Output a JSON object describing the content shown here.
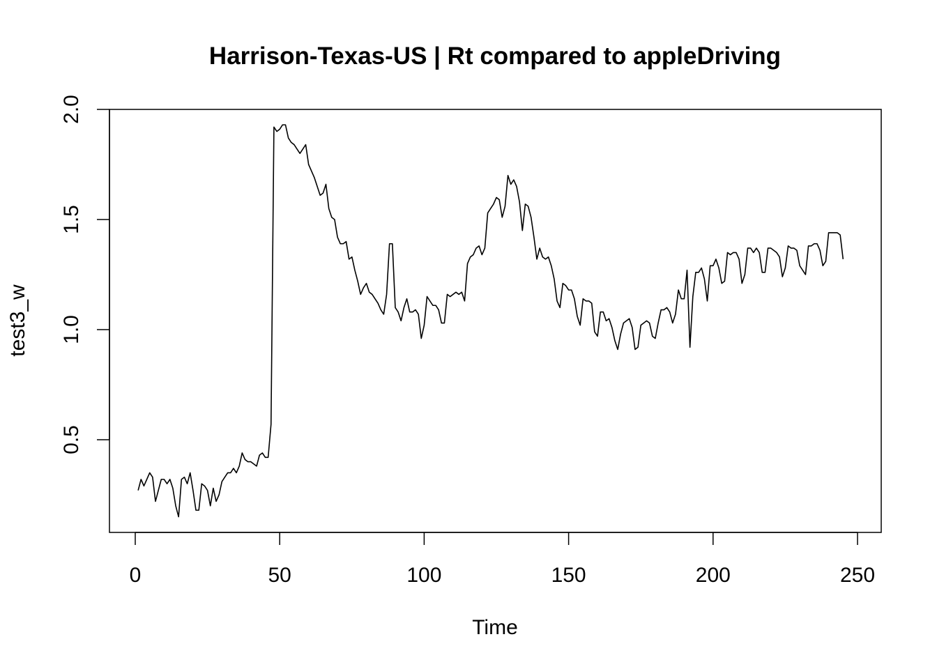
{
  "chart_data": {
    "type": "line",
    "title": "Harrison-Texas-US | Rt compared to appleDriving",
    "xlabel": "Time",
    "ylabel": "test3_w",
    "xlim": [
      0,
      250
    ],
    "ylim": [
      0.15,
      2.0
    ],
    "x_ticks": [
      0,
      50,
      100,
      150,
      200,
      250
    ],
    "y_ticks": [
      0.5,
      1.0,
      1.5,
      2.0
    ],
    "x_tick_labels": [
      "0",
      "50",
      "100",
      "150",
      "200",
      "250"
    ],
    "y_tick_labels": [
      "0.5",
      "1.0",
      "1.5",
      "2.0"
    ],
    "grid": false,
    "legend": "none",
    "line_color": "#000000",
    "series": [
      {
        "values": [
          0.27,
          0.32,
          0.29,
          0.32,
          0.35,
          0.33,
          0.22,
          0.27,
          0.32,
          0.32,
          0.3,
          0.32,
          0.28,
          0.2,
          0.15,
          0.32,
          0.33,
          0.3,
          0.35,
          0.27,
          0.18,
          0.18,
          0.3,
          0.29,
          0.27,
          0.2,
          0.28,
          0.22,
          0.25,
          0.31,
          0.33,
          0.35,
          0.35,
          0.37,
          0.35,
          0.38,
          0.44,
          0.41,
          0.4,
          0.4,
          0.39,
          0.38,
          0.43,
          0.44,
          0.42,
          0.42,
          0.57,
          1.92,
          1.9,
          1.91,
          1.93,
          1.93,
          1.87,
          1.85,
          1.84,
          1.82,
          1.8,
          1.82,
          1.84,
          1.75,
          1.72,
          1.69,
          1.65,
          1.61,
          1.62,
          1.66,
          1.55,
          1.51,
          1.5,
          1.42,
          1.39,
          1.39,
          1.4,
          1.32,
          1.33,
          1.27,
          1.22,
          1.16,
          1.19,
          1.21,
          1.17,
          1.16,
          1.14,
          1.12,
          1.09,
          1.07,
          1.16,
          1.39,
          1.39,
          1.1,
          1.08,
          1.04,
          1.1,
          1.14,
          1.08,
          1.08,
          1.09,
          1.07,
          0.96,
          1.02,
          1.15,
          1.13,
          1.11,
          1.11,
          1.09,
          1.03,
          1.03,
          1.16,
          1.15,
          1.16,
          1.17,
          1.16,
          1.17,
          1.13,
          1.3,
          1.33,
          1.34,
          1.37,
          1.38,
          1.34,
          1.37,
          1.53,
          1.55,
          1.57,
          1.6,
          1.59,
          1.51,
          1.56,
          1.7,
          1.66,
          1.68,
          1.65,
          1.58,
          1.45,
          1.57,
          1.56,
          1.51,
          1.42,
          1.32,
          1.37,
          1.33,
          1.32,
          1.33,
          1.29,
          1.23,
          1.13,
          1.1,
          1.21,
          1.2,
          1.18,
          1.18,
          1.14,
          1.06,
          1.02,
          1.14,
          1.13,
          1.13,
          1.12,
          0.99,
          0.97,
          1.08,
          1.08,
          1.04,
          1.05,
          1.01,
          0.95,
          0.91,
          0.98,
          1.03,
          1.04,
          1.05,
          1.01,
          0.91,
          0.92,
          1.02,
          1.03,
          1.04,
          1.03,
          0.97,
          0.96,
          1.03,
          1.09,
          1.09,
          1.1,
          1.08,
          1.03,
          1.07,
          1.18,
          1.14,
          1.14,
          1.27,
          0.92,
          1.15,
          1.26,
          1.26,
          1.28,
          1.23,
          1.13,
          1.29,
          1.29,
          1.32,
          1.28,
          1.21,
          1.22,
          1.35,
          1.34,
          1.35,
          1.35,
          1.32,
          1.21,
          1.25,
          1.37,
          1.37,
          1.35,
          1.37,
          1.35,
          1.26,
          1.26,
          1.37,
          1.37,
          1.36,
          1.35,
          1.33,
          1.24,
          1.28,
          1.38,
          1.37,
          1.37,
          1.36,
          1.29,
          1.27,
          1.25,
          1.38,
          1.38,
          1.39,
          1.39,
          1.36,
          1.29,
          1.31,
          1.44,
          1.44,
          1.44,
          1.44,
          1.43,
          1.32
        ]
      }
    ]
  }
}
